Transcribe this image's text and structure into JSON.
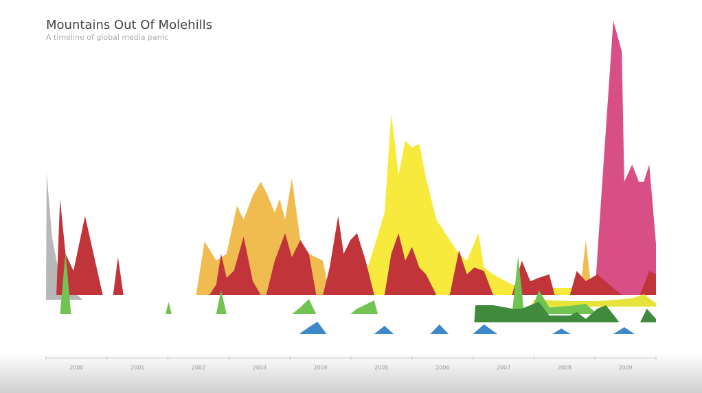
{
  "chart_data": {
    "type": "area",
    "title": "Mountains Out Of Molehills",
    "subtitle": "A timeline of global media panic",
    "xlim": [
      2000,
      2010
    ],
    "ylim": [
      0,
      400
    ],
    "xticks": [
      {
        "value": 2000.5,
        "label": "2000"
      },
      {
        "value": 2001.5,
        "label": "2001"
      },
      {
        "value": 2002.5,
        "label": "2002"
      },
      {
        "value": 2003.5,
        "label": "2003"
      },
      {
        "value": 2004.5,
        "label": "2004"
      },
      {
        "value": 2005.5,
        "label": "2005"
      },
      {
        "value": 2006.5,
        "label": "2006"
      },
      {
        "value": 2007.5,
        "label": "2007"
      },
      {
        "value": 2008.5,
        "label": "2008"
      },
      {
        "value": 2009.5,
        "label": "2009"
      }
    ],
    "series": [
      {
        "color": "#b8b8b8",
        "x": [
          2000.0,
          2000.01,
          2000.1,
          2000.2,
          2000.35,
          2000.45,
          2000.6
        ],
        "values": [
          0,
          185,
          90,
          45,
          25,
          12,
          0
        ]
      },
      {
        "color": "#f0bc4f",
        "x": [
          2002.46,
          2002.6,
          2002.79,
          2002.96,
          2003.13,
          2003.24,
          2003.39,
          2003.52,
          2003.61,
          2003.75,
          2003.83,
          2003.92,
          2004.03,
          2004.17,
          2004.31,
          2004.54,
          2004.65,
          2008.75,
          2008.85,
          2008.95
        ],
        "values": [
          0,
          78,
          50,
          60,
          130,
          110,
          145,
          165,
          150,
          120,
          140,
          110,
          170,
          80,
          60,
          50,
          0,
          0,
          80,
          0
        ]
      },
      {
        "color": "#f8ea3c",
        "x": [
          2005.03,
          2005.1,
          2005.24,
          2005.38,
          2005.55,
          2005.66,
          2005.78,
          2005.89,
          2006.0,
          2006.12,
          2006.23,
          2006.4,
          2006.62,
          2006.77,
          2006.9,
          2007.09,
          2007.18,
          2007.33,
          2007.64,
          2008.08,
          2008.59,
          2009.04,
          2009.61,
          2009.89,
          2010.0
        ],
        "values": [
          0,
          90,
          30,
          70,
          120,
          265,
          175,
          225,
          215,
          220,
          170,
          110,
          80,
          60,
          50,
          90,
          40,
          30,
          15,
          10,
          10,
          10,
          10,
          10,
          0
        ]
      },
      {
        "color": "#d84f86",
        "x": [
          2009.0,
          2009.04,
          2009.3,
          2009.44,
          2009.48,
          2009.61,
          2009.72,
          2009.8,
          2009.89,
          2010.0
        ],
        "values": [
          0,
          60,
          400,
          355,
          165,
          190,
          165,
          165,
          190,
          75
        ]
      },
      {
        "color": "#c0343a",
        "x": [
          2000.17,
          2000.23,
          2000.32,
          2000.45,
          2000.64,
          2000.93,
          2001.1,
          2001.18,
          2001.27,
          2002.68,
          2002.79,
          2002.87,
          2002.96,
          2003.08,
          2003.24,
          2003.39,
          2003.52,
          2003.61,
          2003.75,
          2003.92,
          2004.03,
          2004.17,
          2004.31,
          2004.43,
          2004.54,
          2004.65,
          2004.79,
          2004.88,
          2004.99,
          2005.1,
          2005.24,
          2005.38,
          2005.55,
          2005.66,
          2005.78,
          2005.89,
          2006.0,
          2006.12,
          2006.23,
          2006.4,
          2006.62,
          2006.77,
          2006.9,
          2007.02,
          2007.18,
          2007.33,
          2007.64,
          2007.8,
          2007.94,
          2008.08,
          2008.25,
          2008.34,
          2008.59,
          2008.7,
          2008.85,
          2009.04,
          2009.3,
          2009.44,
          2009.74,
          2009.89,
          2010.0
        ],
        "values": [
          0,
          140,
          60,
          35,
          115,
          0,
          0,
          55,
          0,
          0,
          15,
          60,
          25,
          35,
          85,
          20,
          0,
          0,
          50,
          90,
          55,
          80,
          60,
          0,
          0,
          40,
          115,
          60,
          80,
          90,
          50,
          0,
          0,
          60,
          90,
          50,
          70,
          40,
          30,
          0,
          0,
          65,
          30,
          40,
          35,
          0,
          0,
          50,
          20,
          25,
          30,
          0,
          0,
          35,
          20,
          30,
          10,
          0,
          0,
          35,
          30
        ]
      },
      {
        "color": "#e6e43a",
        "x": [
          2007.94,
          2008.0,
          2008.59,
          2009.04,
          2009.61,
          2009.8,
          2010.0
        ],
        "values": [
          0,
          10,
          8,
          8,
          12,
          18,
          5
        ]
      },
      {
        "color": "#72c452",
        "x": [
          2000.23,
          2000.32,
          2000.41,
          2001.96,
          2002.01,
          2002.06,
          2002.79,
          2002.87,
          2002.96,
          2004.03,
          2004.17,
          2004.31,
          2004.43,
          2004.99,
          2005.1,
          2005.38,
          2005.44,
          2007.64,
          2007.74,
          2007.84,
          2007.94,
          2008.08,
          2008.25,
          2008.59,
          2008.85,
          2009.04
        ],
        "values": [
          0,
          90,
          0,
          0,
          18,
          0,
          0,
          35,
          0,
          0,
          10,
          22,
          0,
          0,
          8,
          20,
          0,
          0,
          85,
          0,
          0,
          35,
          10,
          12,
          15,
          0
        ]
      },
      {
        "color": "#3f8a3c",
        "x": [
          2007.02,
          2007.04,
          2007.33,
          2007.64,
          2007.8,
          2008.08,
          2008.25,
          2008.59,
          2008.7,
          2008.85,
          2009.04,
          2009.18,
          2009.4,
          2009.74,
          2009.85,
          2010.0
        ],
        "values": [
          0,
          25,
          25,
          20,
          20,
          30,
          10,
          10,
          15,
          5,
          20,
          25,
          0,
          0,
          20,
          5
        ]
      },
      {
        "color": "#3c88c8",
        "x": [
          2004.15,
          2004.31,
          2004.45,
          2004.6,
          2005.38,
          2005.55,
          2005.7,
          2006.3,
          2006.45,
          2006.6,
          2007.0,
          2007.18,
          2007.4,
          2008.3,
          2008.45,
          2008.6,
          2009.3,
          2009.48,
          2009.65
        ],
        "values": [
          0,
          10,
          18,
          0,
          0,
          12,
          0,
          0,
          14,
          0,
          0,
          14,
          0,
          0,
          8,
          0,
          0,
          10,
          0
        ]
      }
    ]
  }
}
